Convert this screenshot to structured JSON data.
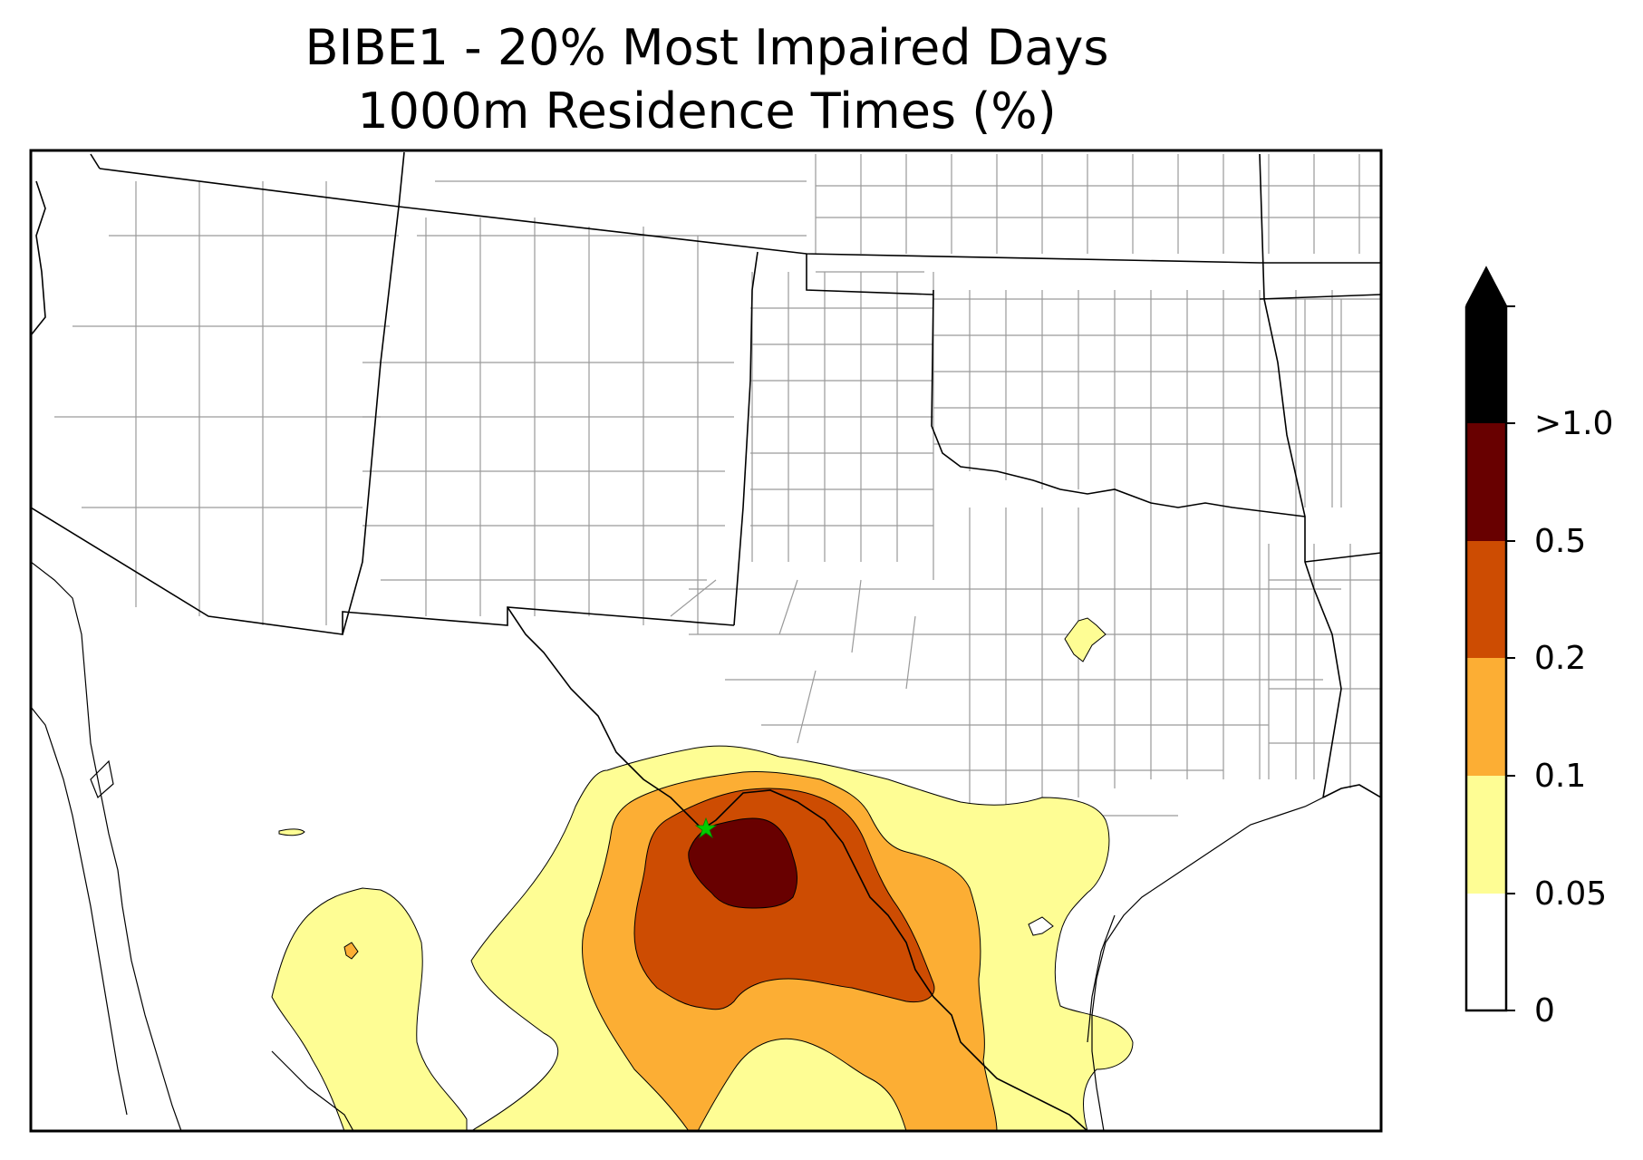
{
  "title_line1": "BIBE1 - 20% Most Impaired Days",
  "title_line2": "1000m Residence Times (%)",
  "site_marker": {
    "name_icon": "green-star-icon",
    "color": "#00cc00"
  },
  "colorbar": {
    "extend": "max",
    "levels": [
      {
        "label": "0",
        "color": "#ffffff"
      },
      {
        "label": "0.05",
        "color": "#fefd94"
      },
      {
        "label": "0.1",
        "color": "#fcae34"
      },
      {
        "label": "0.2",
        "color": "#cd4c02"
      },
      {
        "label": "0.5",
        "color": "#680000"
      },
      {
        "label": ">1.0",
        "color": "#000000"
      }
    ]
  },
  "colors": {
    "lvl_005": "#fefd94",
    "lvl_01": "#fcae34",
    "lvl_02": "#cd4c02",
    "lvl_05": "#680000",
    "over": "#000000",
    "state_border": "#000000",
    "county_border": "#9a9a9a"
  }
}
